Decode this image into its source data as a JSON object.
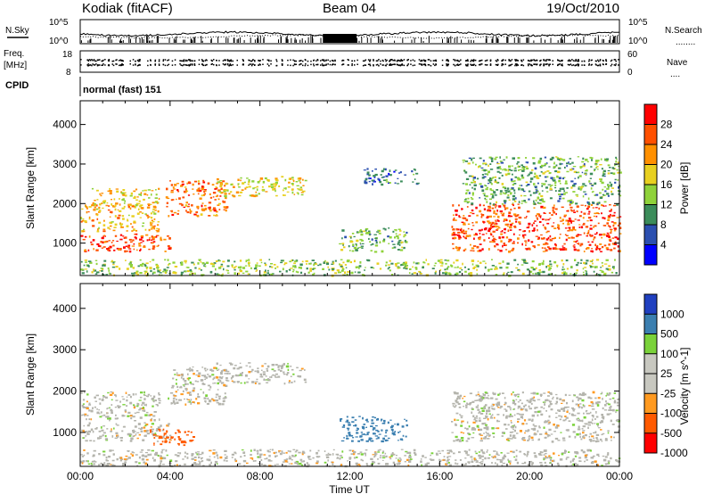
{
  "header": {
    "station": "Kodiak (fitACF)",
    "beam": "Beam 04",
    "date": "19/Oct/2010"
  },
  "noise_panel": {
    "left_label": "N.Sky",
    "right_label": "N.Search",
    "right_symbol": "........",
    "ticks_left": [
      "10^5",
      "10^0"
    ],
    "ticks_right": [
      "10^5",
      "10^0"
    ]
  },
  "freq_panel": {
    "left_label_1": "Freq.",
    "left_label_2": "[MHz]",
    "right_label": "Nave",
    "right_symbol": "....",
    "ticks_left": [
      "18",
      "8"
    ],
    "ticks_right": [
      "60",
      "0"
    ]
  },
  "cpid": {
    "label": "CPID",
    "mode": "normal (fast) 151"
  },
  "colors": {
    "power": [
      "#0000ff",
      "#2b4fb0",
      "#3b8c5a",
      "#8fd23a",
      "#e8d020",
      "#ff9000",
      "#ff5000",
      "#ff0000"
    ],
    "velocity": [
      "#ff0000",
      "#ff5a00",
      "#ff9a20",
      "#c8c8c0",
      "#c8c8c0",
      "#7ad23a",
      "#3b7fb0",
      "#2040c0"
    ],
    "ground_scatter": "#b4b4ac"
  },
  "chart_data": [
    {
      "type": "heatmap",
      "title": "",
      "xlabel": "Time UT",
      "ylabel": "Slant Range [km]",
      "x_ticks": [
        "00:00",
        "04:00",
        "08:00",
        "12:00",
        "16:00",
        "20:00",
        "00:00"
      ],
      "xlim_hours": [
        0,
        24
      ],
      "y_ticks": [
        1000,
        2000,
        3000,
        4000
      ],
      "ylim": [
        180,
        4600
      ],
      "colorbar": {
        "label": "Power [dB]",
        "ticks": [
          4,
          8,
          12,
          16,
          20,
          24,
          28
        ],
        "range": [
          0,
          32
        ]
      },
      "regions": [
        {
          "t": [
            0,
            4.0
          ],
          "r": [
            800,
            1250
          ],
          "power": 27
        },
        {
          "t": [
            0,
            3.5
          ],
          "r": [
            1300,
            2000
          ],
          "power": 20
        },
        {
          "t": [
            0.5,
            3.5
          ],
          "r": [
            1950,
            2400
          ],
          "power": 18
        },
        {
          "t": [
            3.8,
            6.5
          ],
          "r": [
            1700,
            2600
          ],
          "power": 24
        },
        {
          "t": [
            6.0,
            10.0
          ],
          "r": [
            2200,
            2700
          ],
          "power": 18
        },
        {
          "t": [
            11.5,
            14.5
          ],
          "r": [
            800,
            1400
          ],
          "power": 12
        },
        {
          "t": [
            12.5,
            15.0
          ],
          "r": [
            2500,
            2900
          ],
          "power": 8
        },
        {
          "t": [
            16.5,
            24
          ],
          "r": [
            800,
            2000
          ],
          "power": 27
        },
        {
          "t": [
            17.0,
            24
          ],
          "r": [
            2000,
            3200
          ],
          "power": 12
        },
        {
          "t": [
            0,
            24
          ],
          "r": [
            200,
            600
          ],
          "power": 14
        }
      ]
    },
    {
      "type": "heatmap",
      "title": "",
      "xlabel": "Time UT",
      "ylabel": "Slant Range [km]",
      "x_ticks": [
        "00:00",
        "04:00",
        "08:00",
        "12:00",
        "16:00",
        "20:00",
        "00:00"
      ],
      "xlim_hours": [
        0,
        24
      ],
      "y_ticks": [
        1000,
        2000,
        3000,
        4000
      ],
      "ylim": [
        180,
        4600
      ],
      "colorbar": {
        "label": "Velocity [m s^-1]",
        "tick_labels": [
          "1000",
          "500",
          "100",
          "25",
          "-25",
          "-100",
          "-500",
          "-1000"
        ]
      },
      "regions": [
        {
          "t": [
            0,
            4.0
          ],
          "r": [
            800,
            1250
          ],
          "velocity": 0
        },
        {
          "t": [
            0,
            3.5
          ],
          "r": [
            1300,
            2000
          ],
          "velocity": 0
        },
        {
          "t": [
            3.8,
            6.5
          ],
          "r": [
            1700,
            2600
          ],
          "velocity": 0
        },
        {
          "t": [
            6.0,
            10.0
          ],
          "r": [
            2200,
            2700
          ],
          "velocity": 0
        },
        {
          "t": [
            3.0,
            5.0
          ],
          "r": [
            700,
            1100
          ],
          "velocity": -200
        },
        {
          "t": [
            11.5,
            14.5
          ],
          "r": [
            800,
            1400
          ],
          "velocity": 150
        },
        {
          "t": [
            16.5,
            24
          ],
          "r": [
            800,
            2000
          ],
          "velocity": 0
        },
        {
          "t": [
            0,
            24
          ],
          "r": [
            200,
            600
          ],
          "velocity": 0
        }
      ]
    }
  ]
}
